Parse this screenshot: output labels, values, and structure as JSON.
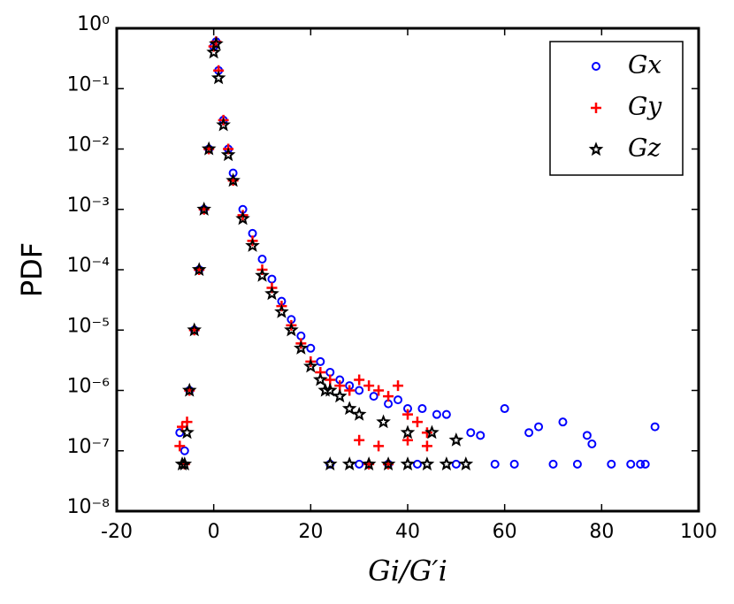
{
  "chart_data": {
    "type": "scatter",
    "xlabel": "Gi/G′i",
    "ylabel": "PDF",
    "xlim": [
      -20,
      100
    ],
    "xticks": [
      -20,
      0,
      20,
      40,
      60,
      80,
      100
    ],
    "ylim": [
      1e-08,
      1
    ],
    "log_y": true,
    "yticks": [
      {
        "value": 1e-08,
        "label": "10⁻⁸"
      },
      {
        "value": 1e-07,
        "label": "10⁻⁷"
      },
      {
        "value": 1e-06,
        "label": "10⁻⁶"
      },
      {
        "value": 1e-05,
        "label": "10⁻⁵"
      },
      {
        "value": 0.0001,
        "label": "10⁻⁴"
      },
      {
        "value": 0.001,
        "label": "10⁻³"
      },
      {
        "value": 0.01,
        "label": "10⁻²"
      },
      {
        "value": 0.1,
        "label": "10⁻¹"
      },
      {
        "value": 1,
        "label": "10⁰"
      }
    ],
    "legend": "upper right",
    "series": [
      {
        "name": "Gx",
        "color": "#0000ff",
        "marker": "circle",
        "x": [
          -7,
          -6,
          -5,
          -4,
          -3,
          -2,
          -1,
          0,
          0.5,
          1,
          2,
          3,
          4,
          6,
          8,
          10,
          12,
          14,
          16,
          18,
          20,
          22,
          24,
          26,
          28,
          30,
          33,
          36,
          38,
          40,
          43,
          46,
          48,
          24,
          30,
          36,
          42,
          50,
          53,
          55,
          58,
          60,
          62,
          65,
          67,
          70,
          72,
          75,
          77,
          78,
          82,
          86,
          88,
          89,
          91
        ],
        "values": [
          2e-07,
          1e-07,
          1e-06,
          1e-05,
          0.0001,
          0.001,
          0.01,
          0.5,
          0.6,
          0.2,
          0.03,
          0.01,
          0.004,
          0.001,
          0.0004,
          0.00015,
          7e-05,
          3e-05,
          1.5e-05,
          8e-06,
          5e-06,
          3e-06,
          2e-06,
          1.5e-06,
          1.2e-06,
          1e-06,
          8e-07,
          6e-07,
          7e-07,
          5e-07,
          5e-07,
          4e-07,
          4e-07,
          6e-08,
          6e-08,
          6e-08,
          6e-08,
          6e-08,
          2e-07,
          1.8e-07,
          6e-08,
          5e-07,
          6e-08,
          2e-07,
          2.5e-07,
          6e-08,
          3e-07,
          6e-08,
          1.8e-07,
          1.3e-07,
          6e-08,
          6e-08,
          6e-08,
          6e-08,
          2.5e-07
        ]
      },
      {
        "name": "Gy",
        "color": "#ff0000",
        "marker": "plus",
        "x": [
          -7,
          -6.5,
          -6,
          -5.5,
          -5,
          -4,
          -3,
          -2,
          -1,
          0,
          0.5,
          1,
          2,
          3,
          4,
          6,
          8,
          10,
          12,
          14,
          16,
          18,
          20,
          22,
          24,
          26,
          28,
          30,
          32,
          34,
          36,
          38,
          40,
          42,
          44,
          30,
          32,
          34,
          36,
          40,
          44
        ],
        "values": [
          1.2e-07,
          2.5e-07,
          6e-08,
          3e-07,
          1e-06,
          1e-05,
          0.0001,
          0.001,
          0.01,
          0.5,
          0.6,
          0.2,
          0.03,
          0.01,
          0.003,
          0.0008,
          0.0003,
          0.0001,
          5e-05,
          2.5e-05,
          1.2e-05,
          6e-06,
          3e-06,
          2e-06,
          1.5e-06,
          1.2e-06,
          1e-06,
          1.5e-06,
          1.2e-06,
          1e-06,
          8e-07,
          1.2e-06,
          4e-07,
          3e-07,
          2e-07,
          1.5e-07,
          6e-08,
          1.2e-07,
          6e-08,
          1.5e-07,
          1.2e-07
        ]
      },
      {
        "name": "Gz",
        "color": "#000000",
        "marker": "star",
        "x": [
          -6.5,
          -6,
          -5.5,
          -5,
          -4,
          -3,
          -2,
          -1,
          0,
          0.5,
          1,
          2,
          3,
          4,
          6,
          8,
          10,
          12,
          14,
          16,
          18,
          20,
          22,
          24,
          26,
          28,
          30,
          35,
          40,
          45,
          50,
          52,
          24,
          28,
          32,
          36,
          40,
          44,
          48,
          23
        ],
        "values": [
          6e-08,
          6e-08,
          2e-07,
          1e-06,
          1e-05,
          0.0001,
          0.001,
          0.01,
          0.4,
          0.55,
          0.15,
          0.025,
          0.008,
          0.003,
          0.0007,
          0.00025,
          8e-05,
          4e-05,
          2e-05,
          1e-05,
          5e-06,
          2.5e-06,
          1.5e-06,
          1e-06,
          8e-07,
          5e-07,
          4e-07,
          3e-07,
          2e-07,
          2e-07,
          1.5e-07,
          6e-08,
          6e-08,
          6e-08,
          6e-08,
          6e-08,
          6e-08,
          6e-08,
          6e-08,
          1e-06
        ]
      }
    ]
  }
}
